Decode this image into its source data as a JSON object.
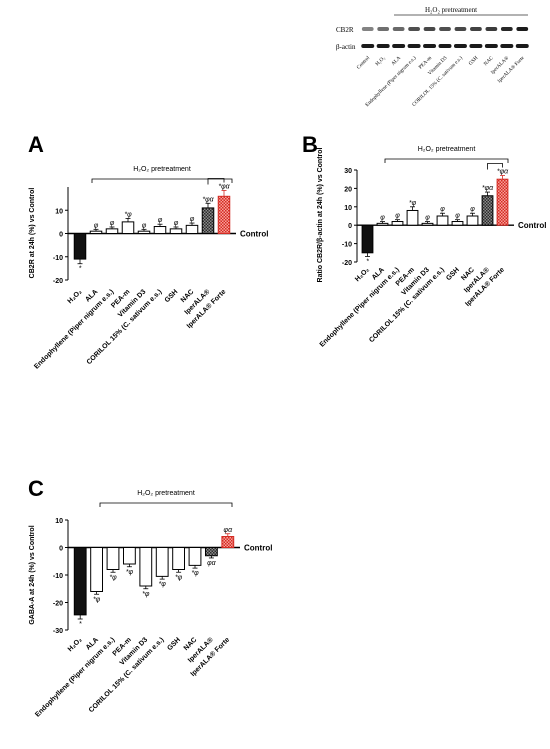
{
  "figure": {
    "blot": {
      "bands": [
        "CB2R",
        "β-actin"
      ],
      "pretreatment_label": "H₂O₂ pretreatment",
      "lanes": [
        "Control",
        "H₂O₂",
        "ALA",
        "Endophyllene (Piper nigrum e.s.)",
        "PEA-m",
        "Vitamin D3",
        "CORILOL 15% (C. sativum e.s.)",
        "GSH",
        "NAC",
        "IperALA®",
        "IperALA® Forte"
      ]
    }
  },
  "chart_data": [
    {
      "panel": "A",
      "type": "bar",
      "ylabel": "CB2R at 24h (%) vs Control",
      "ylim": [
        -20,
        20
      ],
      "yticks": [
        -20,
        -10,
        0,
        10
      ],
      "baseline_label": "Control",
      "bracket_label": "H₂O₂ pretreatment",
      "categories": [
        "H₂O₂",
        "ALA",
        "Endophyllene (Piper nigrum e.s.)",
        "PEA-m",
        "Vitamin D3",
        "CORILOL 15% (C. sativum e.s.)",
        "GSH",
        "NAC",
        "IperALA®",
        "IperALA® Forte"
      ],
      "values": [
        -11,
        1,
        2,
        5,
        1,
        3,
        2,
        3.5,
        11,
        16
      ],
      "errors": [
        2,
        0.8,
        0.8,
        1.5,
        0.8,
        1,
        0.8,
        1,
        2,
        2.5
      ],
      "annotations": [
        "*",
        "φ",
        "φ",
        "*φ",
        "φ",
        "φ",
        "φ",
        "φ",
        "*φα",
        "*φα"
      ],
      "colors": [
        "#111111",
        "#ffffff",
        "#ffffff",
        "#ffffff",
        "#ffffff",
        "#ffffff",
        "#ffffff",
        "#ffffff",
        "#555555",
        "#e8403a"
      ]
    },
    {
      "panel": "B",
      "type": "bar",
      "ylabel": "Ratio CB2R/β-actin at 24h (%) vs Control",
      "ylim": [
        -20,
        30
      ],
      "yticks": [
        -20,
        -10,
        0,
        10,
        20,
        30
      ],
      "baseline_label": "Control",
      "bracket_label": "H₂O₂ pretreatment",
      "categories": [
        "H₂O₂",
        "ALA",
        "Endophyllene (Piper nigrum e.s.)",
        "PEA-m",
        "Vitamin D3",
        "CORILOL 15% (C. sativum e.s.)",
        "GSH",
        "NAC",
        "IperALA®",
        "IperALA® Forte"
      ],
      "values": [
        -15,
        1,
        2,
        8,
        1,
        5,
        2,
        5,
        16,
        25
      ],
      "errors": [
        2,
        1,
        1,
        2,
        1,
        1.5,
        1,
        1.5,
        2,
        2
      ],
      "annotations": [
        "*",
        "φ",
        "φ",
        "*φ",
        "φ",
        "φ",
        "φ",
        "φ",
        "*φα",
        "*φα"
      ],
      "colors": [
        "#111111",
        "#ffffff",
        "#ffffff",
        "#ffffff",
        "#ffffff",
        "#ffffff",
        "#ffffff",
        "#ffffff",
        "#555555",
        "#e8403a"
      ]
    },
    {
      "panel": "C",
      "type": "bar",
      "ylabel": "GABA-A at 24h (%) vs Control",
      "ylim": [
        -30,
        10
      ],
      "yticks": [
        -30,
        -20,
        -10,
        0,
        10
      ],
      "baseline_label": "Control",
      "bracket_label": "H₂O₂ pretreatment",
      "categories": [
        "H₂O₂",
        "ALA",
        "Endophyllene (Piper nigrum e.s.)",
        "PEA-m",
        "Vitamin D3",
        "CORILOL 15% (C. sativum e.s.)",
        "GSH",
        "NAC",
        "IperALA®",
        "IperALA® Forte"
      ],
      "values": [
        -24.5,
        -16,
        -8,
        -6,
        -14,
        -10.5,
        -8,
        -6.5,
        -3,
        4
      ],
      "errors": [
        1.5,
        1,
        1,
        1,
        1,
        1,
        1,
        1,
        0.8,
        1
      ],
      "annotations": [
        "*",
        "*φ",
        "*φ",
        "*φ",
        "*φ",
        "*φ",
        "*φ",
        "*φ",
        "φα",
        "φα"
      ],
      "colors": [
        "#111111",
        "#ffffff",
        "#ffffff",
        "#ffffff",
        "#ffffff",
        "#ffffff",
        "#ffffff",
        "#ffffff",
        "#555555",
        "#e8403a"
      ]
    }
  ]
}
